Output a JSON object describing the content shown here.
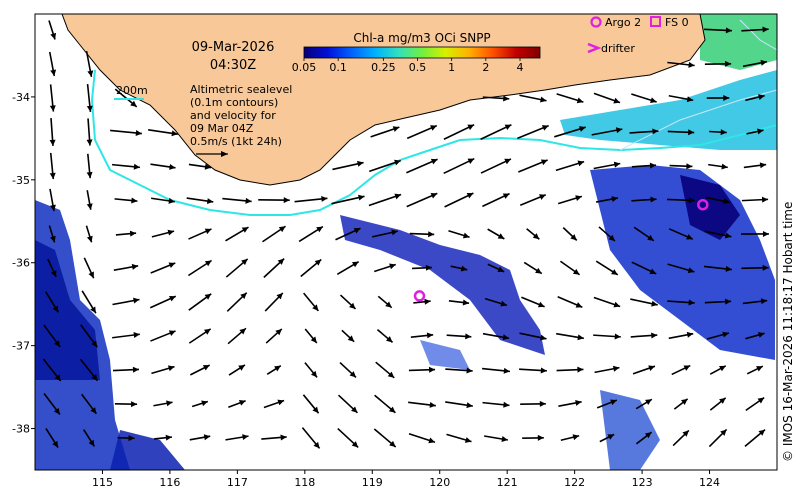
{
  "map": {
    "date_label": "09-Mar-2026",
    "time_label": "04:30Z",
    "colorbar": {
      "title": "Chl-a mg/m3 OCi SNPP",
      "tick_labels": [
        "0.05",
        "0.1",
        "0.25",
        "0.5",
        "1",
        "2",
        "4"
      ],
      "tick_values": [
        0.05,
        0.1,
        0.25,
        0.5,
        1,
        2,
        4
      ],
      "range": [
        0.05,
        6
      ],
      "scale": "log",
      "colors": [
        "#08007a",
        "#0010d8",
        "#0060ff",
        "#00b0ff",
        "#30e0c0",
        "#70f040",
        "#d8f000",
        "#ffb000",
        "#ff5000",
        "#c00000",
        "#800000"
      ]
    },
    "contour_legend": {
      "label": "200m",
      "color": "#2ee6e6"
    },
    "sealevel_note": [
      "Altimetric sealevel",
      "(0.1m contours)",
      "and velocity for",
      "09 Mar 04Z",
      "0.5m/s (1kt 24h)"
    ],
    "legend": {
      "argo_label": "Argo 2",
      "fs_label": "FS 0",
      "drifter_label": "drifter",
      "marker_color": "#e020e0"
    },
    "x_axis": {
      "tick_labels": [
        "115",
        "116",
        "117",
        "118",
        "119",
        "120",
        "121",
        "122",
        "123",
        "124"
      ],
      "range": [
        114,
        125
      ]
    },
    "y_axis": {
      "tick_labels": [
        "-34",
        "-35",
        "-36",
        "-37",
        "-38"
      ],
      "range": [
        -38.5,
        -33
      ]
    },
    "argo_floats": [
      {
        "lon": 119.7,
        "lat": -36.4
      },
      {
        "lon": 123.9,
        "lat": -35.3
      }
    ],
    "land_color": "#f8c898",
    "credit": "© IMOS 16-Mar-2026 11:18:17 Hobart time"
  }
}
